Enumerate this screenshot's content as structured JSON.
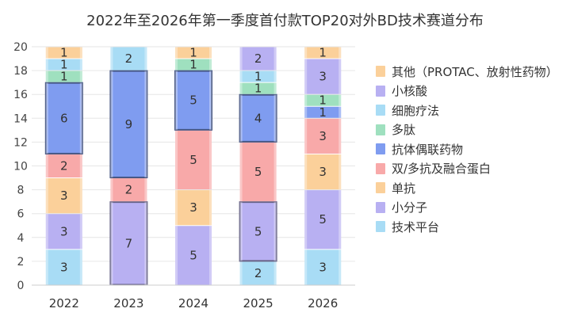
{
  "chart_data": {
    "type": "bar",
    "stacked": true,
    "title": "2022年至2026年第一季度首付款TOP20对外BD技术赛道分布",
    "categories": [
      "2022",
      "2023",
      "2024",
      "2025",
      "2026"
    ],
    "ylim": [
      0,
      20
    ],
    "yticks": [
      0,
      2,
      4,
      6,
      8,
      10,
      12,
      14,
      16,
      18,
      20
    ],
    "grid": true,
    "legend_position": "right",
    "series": [
      {
        "name": "技术平台",
        "color": "#a8dcf5",
        "values": [
          3,
          0,
          0,
          2,
          3
        ]
      },
      {
        "name": "小分子",
        "color": "#b8b0f2",
        "values": [
          3,
          7,
          5,
          5,
          5
        ]
      },
      {
        "name": "单抗",
        "color": "#fbd09a",
        "values": [
          3,
          0,
          3,
          0,
          3
        ]
      },
      {
        "name": "双/多抗及融合蛋白",
        "color": "#f8a9a9",
        "values": [
          2,
          2,
          5,
          5,
          3
        ]
      },
      {
        "name": "抗体偶联药物",
        "color": "#7f9cf0",
        "values": [
          6,
          9,
          5,
          4,
          1
        ]
      },
      {
        "name": "多肽",
        "color": "#9fe0bf",
        "values": [
          1,
          0,
          1,
          1,
          1
        ]
      },
      {
        "name": "细胞疗法",
        "color": "#a8dcf5",
        "values": [
          1,
          2,
          0,
          1,
          0
        ]
      },
      {
        "name": "小核酸",
        "color": "#b8b0f2",
        "values": [
          0,
          0,
          0,
          2,
          3
        ]
      },
      {
        "name": "其他（PROTAC、放射性药物）",
        "color": "#fbd09a",
        "values": [
          1,
          0,
          1,
          0,
          1
        ]
      }
    ],
    "legend_order": [
      "其他（PROTAC、放射性药物）",
      "小核酸",
      "细胞疗法",
      "多肽",
      "抗体偶联药物",
      "双/多抗及融合蛋白",
      "单抗",
      "小分子",
      "技术平台"
    ],
    "highlight": [
      {
        "category": "2022",
        "series": "抗体偶联药物"
      },
      {
        "category": "2023",
        "series": "抗体偶联药物"
      },
      {
        "category": "2023",
        "series": "小分子"
      },
      {
        "category": "2024",
        "series": "抗体偶联药物"
      },
      {
        "category": "2025",
        "series": "抗体偶联药物"
      },
      {
        "category": "2025",
        "series": "小分子"
      }
    ]
  }
}
